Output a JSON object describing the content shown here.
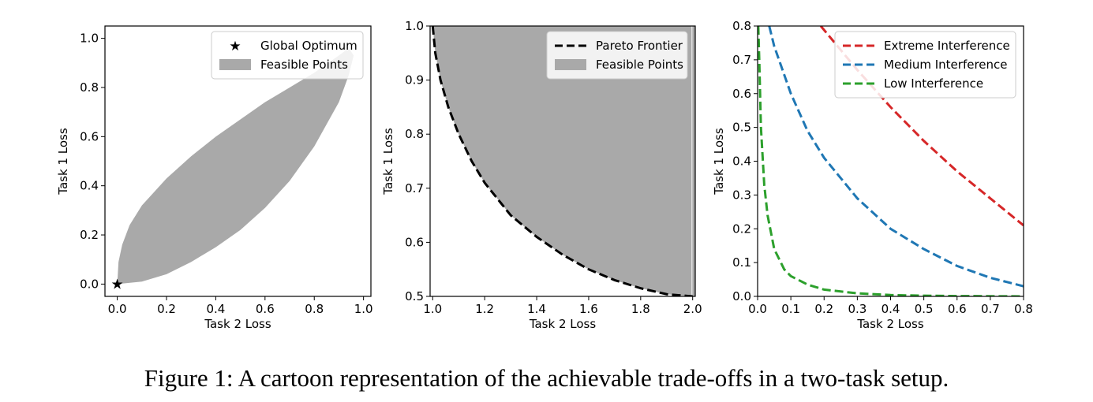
{
  "caption": "Figure 1: A cartoon representation of the achievable trade-offs in a two-task setup.",
  "chart_data": [
    {
      "type": "area",
      "xlabel": "Task 2 Loss",
      "ylabel": "Task 1 Loss",
      "xlim": [
        -0.05,
        1.03
      ],
      "ylim": [
        -0.05,
        1.05
      ],
      "xticks": [
        0.0,
        0.2,
        0.4,
        0.6,
        0.8,
        1.0
      ],
      "yticks": [
        0.0,
        0.2,
        0.4,
        0.6,
        0.8,
        1.0
      ],
      "grid": false,
      "legend_position": "upper-right",
      "series": [
        {
          "name": "Feasible Points",
          "kind": "fill",
          "color": "#a9a9a9",
          "upper": [
            [
              0.0,
              0.0
            ],
            [
              0.005,
              0.09
            ],
            [
              0.02,
              0.16
            ],
            [
              0.05,
              0.24
            ],
            [
              0.1,
              0.32
            ],
            [
              0.2,
              0.43
            ],
            [
              0.3,
              0.52
            ],
            [
              0.4,
              0.6
            ],
            [
              0.5,
              0.67
            ],
            [
              0.6,
              0.74
            ],
            [
              0.7,
              0.8
            ],
            [
              0.8,
              0.86
            ],
            [
              0.9,
              0.93
            ],
            [
              0.94,
              0.96
            ]
          ],
          "lower": [
            [
              0.0,
              0.0
            ],
            [
              0.1,
              0.01
            ],
            [
              0.2,
              0.04
            ],
            [
              0.3,
              0.09
            ],
            [
              0.4,
              0.15
            ],
            [
              0.5,
              0.22
            ],
            [
              0.6,
              0.31
            ],
            [
              0.7,
              0.42
            ],
            [
              0.8,
              0.56
            ],
            [
              0.9,
              0.74
            ],
            [
              0.94,
              0.85
            ],
            [
              0.96,
              0.93
            ]
          ]
        },
        {
          "name": "Global Optimum",
          "kind": "marker",
          "marker": "star",
          "color": "#000000",
          "points": [
            [
              0.0,
              0.0
            ]
          ]
        }
      ]
    },
    {
      "type": "area",
      "xlabel": "Task 2 Loss",
      "ylabel": "Task 1 Loss",
      "xlim": [
        0.99,
        2.01
      ],
      "ylim": [
        0.5,
        1.0
      ],
      "xticks": [
        1.0,
        1.2,
        1.4,
        1.6,
        1.8,
        2.0
      ],
      "yticks": [
        0.5,
        0.6,
        0.7,
        0.8,
        0.9,
        1.0
      ],
      "grid": false,
      "legend_position": "upper-right",
      "series": [
        {
          "name": "Pareto Frontier",
          "kind": "line",
          "style": "dashed",
          "color": "#000000",
          "points": [
            [
              1.0,
              1.0
            ],
            [
              1.01,
              0.95
            ],
            [
              1.03,
              0.9
            ],
            [
              1.06,
              0.85
            ],
            [
              1.1,
              0.8
            ],
            [
              1.15,
              0.75
            ],
            [
              1.2,
              0.71
            ],
            [
              1.3,
              0.65
            ],
            [
              1.4,
              0.61
            ],
            [
              1.5,
              0.577
            ],
            [
              1.6,
              0.55
            ],
            [
              1.7,
              0.53
            ],
            [
              1.8,
              0.515
            ],
            [
              1.9,
              0.504
            ],
            [
              2.0,
              0.5
            ]
          ]
        },
        {
          "name": "Feasible Points",
          "kind": "fill_above",
          "color": "#a9a9a9",
          "points": [
            [
              1.0,
              1.0
            ],
            [
              1.01,
              0.95
            ],
            [
              1.03,
              0.9
            ],
            [
              1.06,
              0.85
            ],
            [
              1.1,
              0.8
            ],
            [
              1.15,
              0.75
            ],
            [
              1.2,
              0.71
            ],
            [
              1.3,
              0.65
            ],
            [
              1.4,
              0.61
            ],
            [
              1.5,
              0.577
            ],
            [
              1.6,
              0.55
            ],
            [
              1.7,
              0.53
            ],
            [
              1.8,
              0.515
            ],
            [
              1.9,
              0.504
            ],
            [
              2.0,
              0.5
            ]
          ]
        }
      ]
    },
    {
      "type": "line",
      "xlabel": "Task 2 Loss",
      "ylabel": "Task 1 Loss",
      "xlim": [
        0.0,
        0.8
      ],
      "ylim": [
        0.0,
        0.8
      ],
      "xticks": [
        0.0,
        0.1,
        0.2,
        0.3,
        0.4,
        0.5,
        0.6,
        0.7,
        0.8
      ],
      "yticks": [
        0.0,
        0.1,
        0.2,
        0.3,
        0.4,
        0.5,
        0.6,
        0.7,
        0.8
      ],
      "grid": false,
      "legend_position": "upper-right",
      "series": [
        {
          "name": "Extreme Interference",
          "style": "dashed",
          "color": "#d62728",
          "points": [
            [
              0.19,
              0.8
            ],
            [
              0.3,
              0.67
            ],
            [
              0.4,
              0.56
            ],
            [
              0.5,
              0.46
            ],
            [
              0.6,
              0.37
            ],
            [
              0.7,
              0.29
            ],
            [
              0.8,
              0.21
            ]
          ]
        },
        {
          "name": "Medium Interference",
          "style": "dashed",
          "color": "#1f77b4",
          "points": [
            [
              0.035,
              0.8
            ],
            [
              0.05,
              0.74
            ],
            [
              0.1,
              0.6
            ],
            [
              0.15,
              0.49
            ],
            [
              0.2,
              0.41
            ],
            [
              0.3,
              0.29
            ],
            [
              0.4,
              0.2
            ],
            [
              0.5,
              0.14
            ],
            [
              0.6,
              0.09
            ],
            [
              0.7,
              0.055
            ],
            [
              0.8,
              0.03
            ]
          ]
        },
        {
          "name": "Low Interference",
          "style": "dashed",
          "color": "#2ca02c",
          "points": [
            [
              0.002,
              0.8
            ],
            [
              0.005,
              0.7
            ],
            [
              0.01,
              0.5
            ],
            [
              0.02,
              0.33
            ],
            [
              0.03,
              0.24
            ],
            [
              0.05,
              0.14
            ],
            [
              0.08,
              0.08
            ],
            [
              0.1,
              0.06
            ],
            [
              0.15,
              0.035
            ],
            [
              0.2,
              0.02
            ],
            [
              0.3,
              0.009
            ],
            [
              0.4,
              0.004
            ],
            [
              0.5,
              0.002
            ],
            [
              0.6,
              0.001
            ],
            [
              0.8,
              0.0
            ]
          ]
        }
      ]
    }
  ]
}
